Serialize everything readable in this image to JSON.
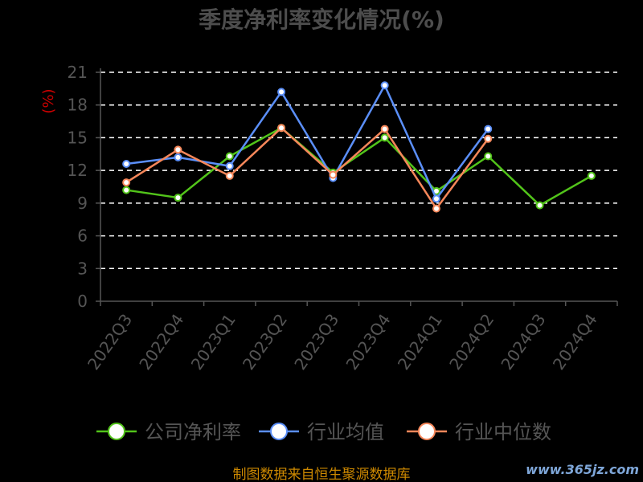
{
  "chart_data": {
    "type": "line",
    "title": "季度净利率变化情况(%)",
    "ylabel": "(%)",
    "xlabel": "",
    "ylim": [
      0,
      21
    ],
    "yticks": [
      0,
      3,
      6,
      9,
      12,
      15,
      18,
      21
    ],
    "grid": true,
    "legend_position": "bottom",
    "categories": [
      "2022Q3",
      "2022Q4",
      "2023Q1",
      "2023Q2",
      "2023Q3",
      "2023Q4",
      "2024Q1",
      "2024Q2",
      "2024Q3",
      "2024Q4"
    ],
    "series": [
      {
        "name": "公司净利率",
        "color": "#52c41a",
        "values": [
          10.2,
          9.5,
          13.3,
          15.9,
          11.8,
          15.0,
          10.1,
          13.3,
          8.8,
          11.5
        ]
      },
      {
        "name": "行业均值",
        "color": "#5b8ff9",
        "values": [
          12.6,
          13.2,
          12.4,
          19.2,
          11.3,
          19.8,
          9.4,
          15.8,
          null,
          null
        ]
      },
      {
        "name": "行业中位数",
        "color": "#f6875a",
        "values": [
          10.9,
          13.9,
          11.5,
          15.9,
          11.6,
          15.8,
          8.5,
          14.9,
          null,
          null
        ]
      }
    ]
  },
  "footer": {
    "source": "制图数据来自恒生聚源数据库",
    "watermark": "www.365jz.com"
  }
}
